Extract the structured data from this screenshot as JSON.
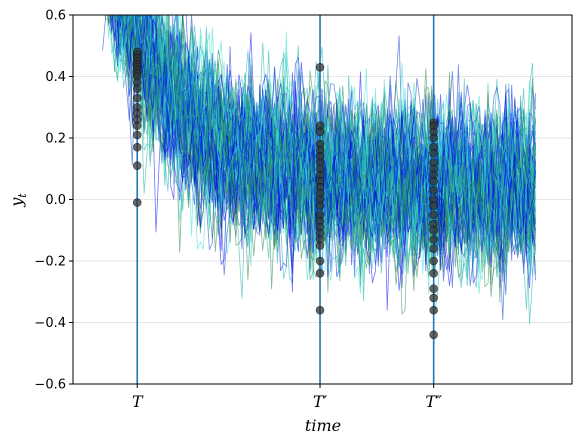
{
  "chart_data": {
    "type": "line",
    "title": "",
    "xlabel": "time",
    "ylabel": "y",
    "ylabel_subscript": "t",
    "ylim": [
      -0.6,
      0.6
    ],
    "yticks": [
      -0.6,
      -0.4,
      -0.2,
      0.0,
      0.2,
      0.4,
      0.6
    ],
    "ytick_labels": [
      "−0.6",
      "−0.4",
      "−0.2",
      "0.0",
      "0.2",
      "0.4",
      "0.6"
    ],
    "grid": "horizontal",
    "xlim": [
      -30,
      475
    ],
    "series_colors": [
      "#0000ff",
      "#0033cc",
      "#20b2aa",
      "#40e0d0",
      "#2e8b57"
    ],
    "trend": {
      "description_values": {
        "start_level": 0.62,
        "decay_floor": 0.03,
        "noise_sd": 0.11
      },
      "x_end": 440
    },
    "markers": [
      {
        "label": "T",
        "x": 35
      },
      {
        "label": "T′",
        "x": 220
      },
      {
        "label": "T″",
        "x": 335
      }
    ],
    "sample_points": {
      "T": [
        0.48,
        0.47,
        0.46,
        0.45,
        0.44,
        0.43,
        0.42,
        0.41,
        0.4,
        0.38,
        0.36,
        0.33,
        0.3,
        0.28,
        0.26,
        0.24,
        0.21,
        0.17,
        0.11,
        -0.01
      ],
      "T′": [
        0.43,
        0.24,
        0.22,
        0.18,
        0.16,
        0.14,
        0.12,
        0.1,
        0.08,
        0.06,
        0.04,
        0.02,
        0.0,
        -0.02,
        -0.05,
        -0.07,
        -0.09,
        -0.11,
        -0.13,
        -0.15,
        -0.2,
        -0.24,
        -0.36
      ],
      "T″": [
        0.25,
        0.24,
        0.22,
        0.2,
        0.17,
        0.15,
        0.12,
        0.1,
        0.08,
        0.06,
        0.03,
        0.0,
        -0.02,
        -0.05,
        -0.08,
        -0.1,
        -0.13,
        -0.16,
        -0.2,
        -0.24,
        -0.29,
        -0.32,
        -0.36,
        -0.44
      ]
    }
  }
}
